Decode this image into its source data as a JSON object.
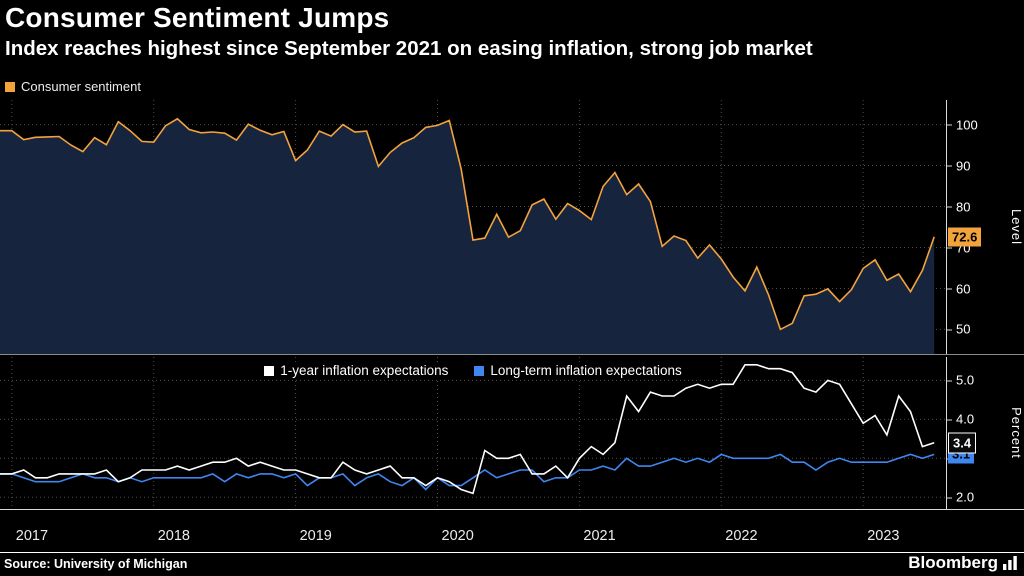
{
  "header": {
    "title": "Consumer Sentiment Jumps",
    "subtitle": "Index reaches highest since September 2021 on easing inflation, strong job market"
  },
  "footer": {
    "source": "Source: University of Michigan",
    "brand": "Bloomberg"
  },
  "colors": {
    "background": "#000000",
    "accent_orange": "#f3a33c",
    "accent_blue": "#3f86f0",
    "line_white": "#ffffff",
    "area_fill": "#16243e",
    "grid": "#4d4d4d",
    "axis": "#d9d9d9"
  },
  "chart_data": [
    {
      "type": "area",
      "panel": "top",
      "ylabel": "Level",
      "ylim": [
        44,
        106
      ],
      "yticks": [
        50,
        60,
        70,
        80,
        90,
        100
      ],
      "ytick_labels": [
        "50",
        "60",
        "70",
        "80",
        "90",
        "100"
      ],
      "fill": "#16243e",
      "grid": "dotted",
      "legend_position": "top-left",
      "x_years": [
        "2017",
        "2018",
        "2019",
        "2020",
        "2021",
        "2022",
        "2023"
      ],
      "series": [
        {
          "name": "Consumer sentiment",
          "color": "#f3a33c",
          "last_label": "72.6",
          "values": [
            98.5,
            96.3,
            96.9,
            97.0,
            97.1,
            95.0,
            93.4,
            96.8,
            95.1,
            100.7,
            98.5,
            95.9,
            95.7,
            99.7,
            101.4,
            98.8,
            98.0,
            98.2,
            97.9,
            96.2,
            100.1,
            98.6,
            97.5,
            98.3,
            91.2,
            93.8,
            98.4,
            97.2,
            100.0,
            98.2,
            98.4,
            89.8,
            93.2,
            95.5,
            96.8,
            99.3,
            99.8,
            101.0,
            89.1,
            71.8,
            72.3,
            78.1,
            72.5,
            74.1,
            80.4,
            81.8,
            76.9,
            80.7,
            79.0,
            76.8,
            84.9,
            88.3,
            82.9,
            85.5,
            81.2,
            70.3,
            72.8,
            71.7,
            67.4,
            70.6,
            67.2,
            62.8,
            59.4,
            65.2,
            58.4,
            50.0,
            51.5,
            58.2,
            58.6,
            59.9,
            56.8,
            59.7,
            64.9,
            67.0,
            62.0,
            63.5,
            59.2,
            64.4,
            72.6
          ]
        }
      ]
    },
    {
      "type": "line",
      "panel": "bottom",
      "ylabel": "Percent",
      "ylim": [
        1.7,
        5.6
      ],
      "yticks": [
        2.0,
        3.0,
        4.0,
        5.0
      ],
      "ytick_labels": [
        "2.0",
        "3.0",
        "4.0",
        "5.0"
      ],
      "grid": "dotted",
      "legend_position": "top-center",
      "x_years": [
        "2017",
        "2018",
        "2019",
        "2020",
        "2021",
        "2022",
        "2023"
      ],
      "series": [
        {
          "name": "1-year inflation expectations",
          "color": "#ffffff",
          "last_label": "3.4",
          "values": [
            2.6,
            2.7,
            2.5,
            2.5,
            2.6,
            2.6,
            2.6,
            2.6,
            2.7,
            2.4,
            2.5,
            2.7,
            2.7,
            2.7,
            2.8,
            2.7,
            2.8,
            2.9,
            2.9,
            3.0,
            2.8,
            2.9,
            2.8,
            2.7,
            2.7,
            2.6,
            2.5,
            2.5,
            2.9,
            2.7,
            2.6,
            2.7,
            2.8,
            2.5,
            2.5,
            2.3,
            2.5,
            2.4,
            2.2,
            2.1,
            3.2,
            3.0,
            3.0,
            3.1,
            2.6,
            2.6,
            2.8,
            2.5,
            3.0,
            3.3,
            3.1,
            3.4,
            4.6,
            4.2,
            4.7,
            4.6,
            4.6,
            4.8,
            4.9,
            4.8,
            4.9,
            4.9,
            5.4,
            5.4,
            5.3,
            5.3,
            5.2,
            4.8,
            4.7,
            5.0,
            4.9,
            4.4,
            3.9,
            4.1,
            3.6,
            4.6,
            4.2,
            3.3,
            3.4
          ]
        },
        {
          "name": "Long-term inflation expectations",
          "color": "#3f86f0",
          "last_label": "3.1",
          "values": [
            2.6,
            2.5,
            2.4,
            2.4,
            2.4,
            2.5,
            2.6,
            2.5,
            2.5,
            2.4,
            2.5,
            2.4,
            2.5,
            2.5,
            2.5,
            2.5,
            2.5,
            2.6,
            2.4,
            2.6,
            2.5,
            2.6,
            2.6,
            2.5,
            2.6,
            2.3,
            2.5,
            2.5,
            2.6,
            2.3,
            2.5,
            2.6,
            2.4,
            2.3,
            2.5,
            2.2,
            2.5,
            2.3,
            2.3,
            2.5,
            2.7,
            2.5,
            2.6,
            2.7,
            2.7,
            2.4,
            2.5,
            2.5,
            2.7,
            2.7,
            2.8,
            2.7,
            3.0,
            2.8,
            2.8,
            2.9,
            3.0,
            2.9,
            3.0,
            2.9,
            3.1,
            3.0,
            3.0,
            3.0,
            3.0,
            3.1,
            2.9,
            2.9,
            2.7,
            2.9,
            3.0,
            2.9,
            2.9,
            2.9,
            2.9,
            3.0,
            3.1,
            3.0,
            3.1
          ]
        }
      ]
    }
  ]
}
